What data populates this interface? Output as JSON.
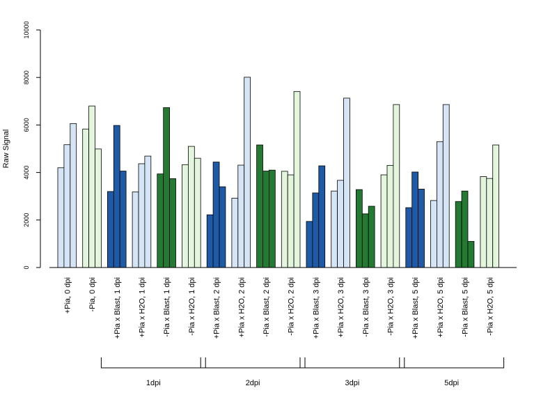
{
  "chart_data": {
    "type": "bar",
    "ylabel": "Raw Signal",
    "ylim": [
      0,
      10000
    ],
    "yticks": [
      0,
      2000,
      4000,
      6000,
      8000,
      10000
    ],
    "grid": false,
    "colors": {
      "light_blue": "#d6e5f5",
      "dark_blue": "#1f5aa6",
      "light_green": "#e3f5dc",
      "dark_green": "#247a33"
    },
    "categories": [
      {
        "label": "+Pia, 0 dpi",
        "color": "light_blue",
        "values": [
          4200,
          5170,
          6060
        ]
      },
      {
        "label": "-Pia, 0 dpi",
        "color": "light_green",
        "values": [
          5830,
          6800,
          4990
        ]
      },
      {
        "label": "+Pia x Blast, 1 dpi",
        "color": "dark_blue",
        "values": [
          3200,
          5980,
          4060
        ]
      },
      {
        "label": "+Pia x H2O, 1 dpi",
        "color": "light_blue",
        "values": [
          3180,
          4370,
          4690
        ]
      },
      {
        "label": "-Pia x Blast, 1 dpi",
        "color": "dark_green",
        "values": [
          3940,
          6730,
          3740
        ]
      },
      {
        "label": "-Pia x H2O, 1 dpi",
        "color": "light_green",
        "values": [
          4330,
          5100,
          4600
        ]
      },
      {
        "label": "+Pia x Blast, 2 dpi",
        "color": "dark_blue",
        "values": [
          2220,
          4440,
          3400
        ]
      },
      {
        "label": "+Pia x H2O, 2 dpi",
        "color": "light_blue",
        "values": [
          2920,
          4310,
          8010
        ]
      },
      {
        "label": "-Pia x Blast, 2 dpi",
        "color": "dark_green",
        "values": [
          5160,
          4060,
          4100
        ]
      },
      {
        "label": "-Pia x H2O, 2 dpi",
        "color": "light_green",
        "values": [
          4050,
          3900,
          7410
        ]
      },
      {
        "label": "+Pia x Blast, 3 dpi",
        "color": "dark_blue",
        "values": [
          1940,
          3140,
          4280
        ]
      },
      {
        "label": "+Pia x H2O, 3 dpi",
        "color": "light_blue",
        "values": [
          3220,
          3670,
          7130
        ]
      },
      {
        "label": "-Pia x Blast, 3 dpi",
        "color": "dark_green",
        "values": [
          3280,
          2260,
          2580
        ]
      },
      {
        "label": "-Pia x H2O, 3 dpi",
        "color": "light_green",
        "values": [
          3900,
          4300,
          6860
        ]
      },
      {
        "label": "+Pia x Blast, 5 dpi",
        "color": "dark_blue",
        "values": [
          2520,
          4020,
          3300
        ]
      },
      {
        "label": "+Pia x H2O, 5 dpi",
        "color": "light_blue",
        "values": [
          2820,
          5300,
          6860
        ]
      },
      {
        "label": "-Pia x Blast, 5 dpi",
        "color": "dark_green",
        "values": [
          2780,
          3220,
          1100
        ]
      },
      {
        "label": "-Pia x H2O, 5 dpi",
        "color": "light_green",
        "values": [
          3830,
          3750,
          5160
        ]
      }
    ],
    "groups": [
      {
        "label": "1dpi",
        "from": 2,
        "to": 5
      },
      {
        "label": "2dpi",
        "from": 6,
        "to": 9
      },
      {
        "label": "3dpi",
        "from": 10,
        "to": 13
      },
      {
        "label": "5dpi",
        "from": 14,
        "to": 17
      }
    ]
  }
}
